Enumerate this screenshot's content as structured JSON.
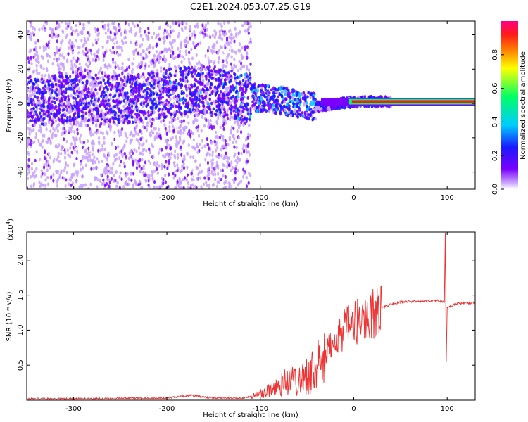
{
  "title": "C2E1.2024.053.07.25.G19",
  "chart_data": [
    {
      "type": "heatmap",
      "xlabel": "Height of straight line (km)",
      "ylabel": "Frequency (Hz)",
      "xlim": [
        -350,
        130
      ],
      "ylim": [
        -50,
        48
      ],
      "x_ticks": [
        -300,
        -200,
        -100,
        0,
        100
      ],
      "y_ticks": [
        -40,
        -20,
        0,
        20,
        40
      ],
      "colorbar": {
        "label": "Normalized spectral amplitude",
        "range": [
          0,
          1
        ],
        "ticks": [
          0.0,
          0.2,
          0.4,
          0.6,
          0.8
        ],
        "colors": [
          "#ffffff",
          "#c8a0ff",
          "#7a00ff",
          "#1a1aff",
          "#00ccff",
          "#00ff66",
          "#ffff00",
          "#ff8800",
          "#ff1a1a",
          "#ff0080"
        ]
      },
      "features": {
        "dominant_frequency_track": [
          {
            "x": -330,
            "y": 2
          },
          {
            "x": -280,
            "y": 4
          },
          {
            "x": -240,
            "y": 2
          },
          {
            "x": -200,
            "y": 6
          },
          {
            "x": -160,
            "y": 8
          },
          {
            "x": -120,
            "y": 4
          },
          {
            "x": -80,
            "y": 2
          },
          {
            "x": -40,
            "y": -2
          },
          {
            "x": 0,
            "y": 1
          },
          {
            "x": 50,
            "y": 1
          },
          {
            "x": 100,
            "y": 1
          },
          {
            "x": 130,
            "y": 1
          }
        ],
        "strong_band_start_km": -35
      }
    },
    {
      "type": "line",
      "xlabel": "Height of straight line (km)",
      "ylabel": "SNR (10 * v/v)",
      "scale_label": "(x10",
      "scale_exponent": "4",
      "scale_close": ")",
      "xlim": [
        -350,
        130
      ],
      "ylim": [
        0,
        24000
      ],
      "x_ticks": [
        -300,
        -200,
        -100,
        0,
        100
      ],
      "y_ticks": [
        5000,
        10000,
        15000,
        20000
      ],
      "y_tick_labels": [
        "0.5",
        "1.0",
        "1.5",
        "2.0"
      ],
      "series": [
        {
          "color": "#ee3333",
          "points": [
            [
              -350,
              200
            ],
            [
              -300,
              200
            ],
            [
              -250,
              250
            ],
            [
              -200,
              300
            ],
            [
              -175,
              700
            ],
            [
              -150,
              300
            ],
            [
              -120,
              300
            ],
            [
              -110,
              500
            ],
            [
              -100,
              900
            ],
            [
              -90,
              1500
            ],
            [
              -80,
              2300
            ],
            [
              -70,
              2800
            ],
            [
              -60,
              3000
            ],
            [
              -50,
              3500
            ],
            [
              -40,
              4500
            ],
            [
              -30,
              6000
            ],
            [
              -25,
              8000
            ],
            [
              -20,
              9000
            ],
            [
              -15,
              9500
            ],
            [
              -10,
              10000
            ],
            [
              -5,
              10500
            ],
            [
              0,
              11000
            ],
            [
              5,
              11300
            ],
            [
              10,
              11800
            ],
            [
              15,
              12000
            ],
            [
              20,
              12300
            ],
            [
              25,
              12800
            ],
            [
              30,
              13200
            ],
            [
              40,
              13700
            ],
            [
              50,
              14000
            ],
            [
              60,
              14100
            ],
            [
              70,
              14100
            ],
            [
              80,
              14200
            ],
            [
              90,
              14200
            ],
            [
              97,
              14000
            ],
            [
              98,
              24000
            ],
            [
              99,
              5500
            ],
            [
              100,
              13200
            ],
            [
              110,
              13800
            ],
            [
              130,
              13900
            ]
          ]
        }
      ]
    }
  ]
}
